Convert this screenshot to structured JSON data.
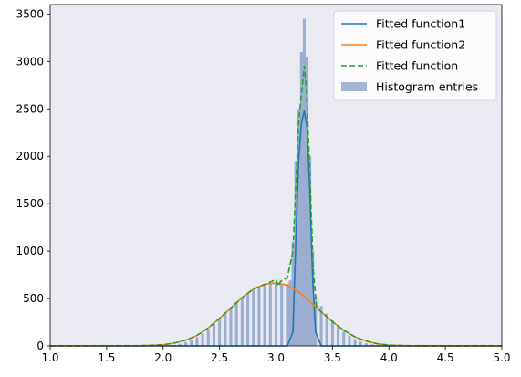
{
  "chart_data": {
    "type": "histogram",
    "title": "",
    "xlabel": "",
    "ylabel": "",
    "xlim": [
      1.0,
      5.0
    ],
    "ylim": [
      0,
      3600
    ],
    "grid": false,
    "background": "#eaeaf2",
    "legend_position": "top-right",
    "x_ticks": [
      "1.0",
      "1.5",
      "2.0",
      "2.5",
      "3.0",
      "3.5",
      "4.0",
      "4.5",
      "5.0"
    ],
    "y_ticks": [
      "0",
      "500",
      "1000",
      "1500",
      "2000",
      "2500",
      "3000",
      "3500"
    ],
    "histogram": {
      "name": "Histogram entries",
      "color": "#4c72b0",
      "bin_width": 0.025,
      "bins": [
        [
          2.0,
          2
        ],
        [
          2.05,
          6
        ],
        [
          2.1,
          12
        ],
        [
          2.15,
          22
        ],
        [
          2.2,
          38
        ],
        [
          2.25,
          60
        ],
        [
          2.3,
          92
        ],
        [
          2.35,
          130
        ],
        [
          2.4,
          178
        ],
        [
          2.45,
          232
        ],
        [
          2.5,
          290
        ],
        [
          2.55,
          350
        ],
        [
          2.6,
          410
        ],
        [
          2.65,
          465
        ],
        [
          2.7,
          515
        ],
        [
          2.75,
          560
        ],
        [
          2.8,
          600
        ],
        [
          2.85,
          630
        ],
        [
          2.9,
          650
        ],
        [
          2.95,
          662
        ],
        [
          3.0,
          665
        ],
        [
          3.05,
          660
        ],
        [
          3.1,
          655
        ],
        [
          3.125,
          690
        ],
        [
          3.15,
          1100
        ],
        [
          3.175,
          1950
        ],
        [
          3.2,
          2500
        ],
        [
          3.225,
          3100
        ],
        [
          3.25,
          3450
        ],
        [
          3.275,
          3050
        ],
        [
          3.3,
          2000
        ],
        [
          3.325,
          1000
        ],
        [
          3.35,
          520
        ],
        [
          3.4,
          420
        ],
        [
          3.45,
          340
        ],
        [
          3.5,
          270
        ],
        [
          3.55,
          205
        ],
        [
          3.6,
          150
        ],
        [
          3.65,
          108
        ],
        [
          3.7,
          72
        ],
        [
          3.75,
          46
        ],
        [
          3.8,
          28
        ],
        [
          3.85,
          16
        ],
        [
          3.9,
          9
        ],
        [
          3.95,
          4
        ],
        [
          4.0,
          2
        ]
      ]
    },
    "series": [
      {
        "name": "Fitted function1",
        "color": "#1f77b4",
        "dash": "solid",
        "x": [
          1.0,
          3.1,
          3.15,
          3.175,
          3.2,
          3.225,
          3.25,
          3.275,
          3.3,
          3.325,
          3.35,
          3.4,
          5.0
        ],
        "y": [
          0,
          0,
          150,
          1100,
          1950,
          2350,
          2480,
          2300,
          1600,
          700,
          150,
          0,
          0
        ]
      },
      {
        "name": "Fitted function2",
        "color": "#ff7f0e",
        "dash": "solid",
        "x": [
          1.0,
          1.8,
          2.0,
          2.1,
          2.2,
          2.3,
          2.4,
          2.5,
          2.6,
          2.7,
          2.8,
          2.9,
          3.0,
          3.1,
          3.2,
          3.3,
          3.4,
          3.5,
          3.6,
          3.7,
          3.8,
          3.9,
          4.0,
          4.2,
          5.0
        ],
        "y": [
          0,
          2,
          12,
          30,
          60,
          110,
          190,
          290,
          400,
          510,
          600,
          650,
          665,
          640,
          570,
          470,
          360,
          255,
          165,
          95,
          50,
          22,
          8,
          1,
          0
        ]
      },
      {
        "name": "Fitted function",
        "color": "#2ca02c",
        "dash": "dashed",
        "x": [
          1.0,
          1.8,
          2.0,
          2.1,
          2.2,
          2.3,
          2.4,
          2.5,
          2.6,
          2.7,
          2.8,
          2.9,
          3.0,
          3.02,
          3.04,
          3.1,
          3.15,
          3.2,
          3.22,
          3.25,
          3.27,
          3.3,
          3.33,
          3.36,
          3.4,
          3.5,
          3.6,
          3.7,
          3.8,
          3.9,
          4.0,
          4.2,
          5.0
        ],
        "y": [
          0,
          2,
          12,
          30,
          60,
          110,
          190,
          290,
          400,
          510,
          600,
          650,
          700,
          630,
          680,
          720,
          1000,
          2350,
          2600,
          2950,
          2700,
          1800,
          800,
          400,
          360,
          255,
          165,
          95,
          50,
          22,
          8,
          1,
          0
        ]
      }
    ]
  }
}
